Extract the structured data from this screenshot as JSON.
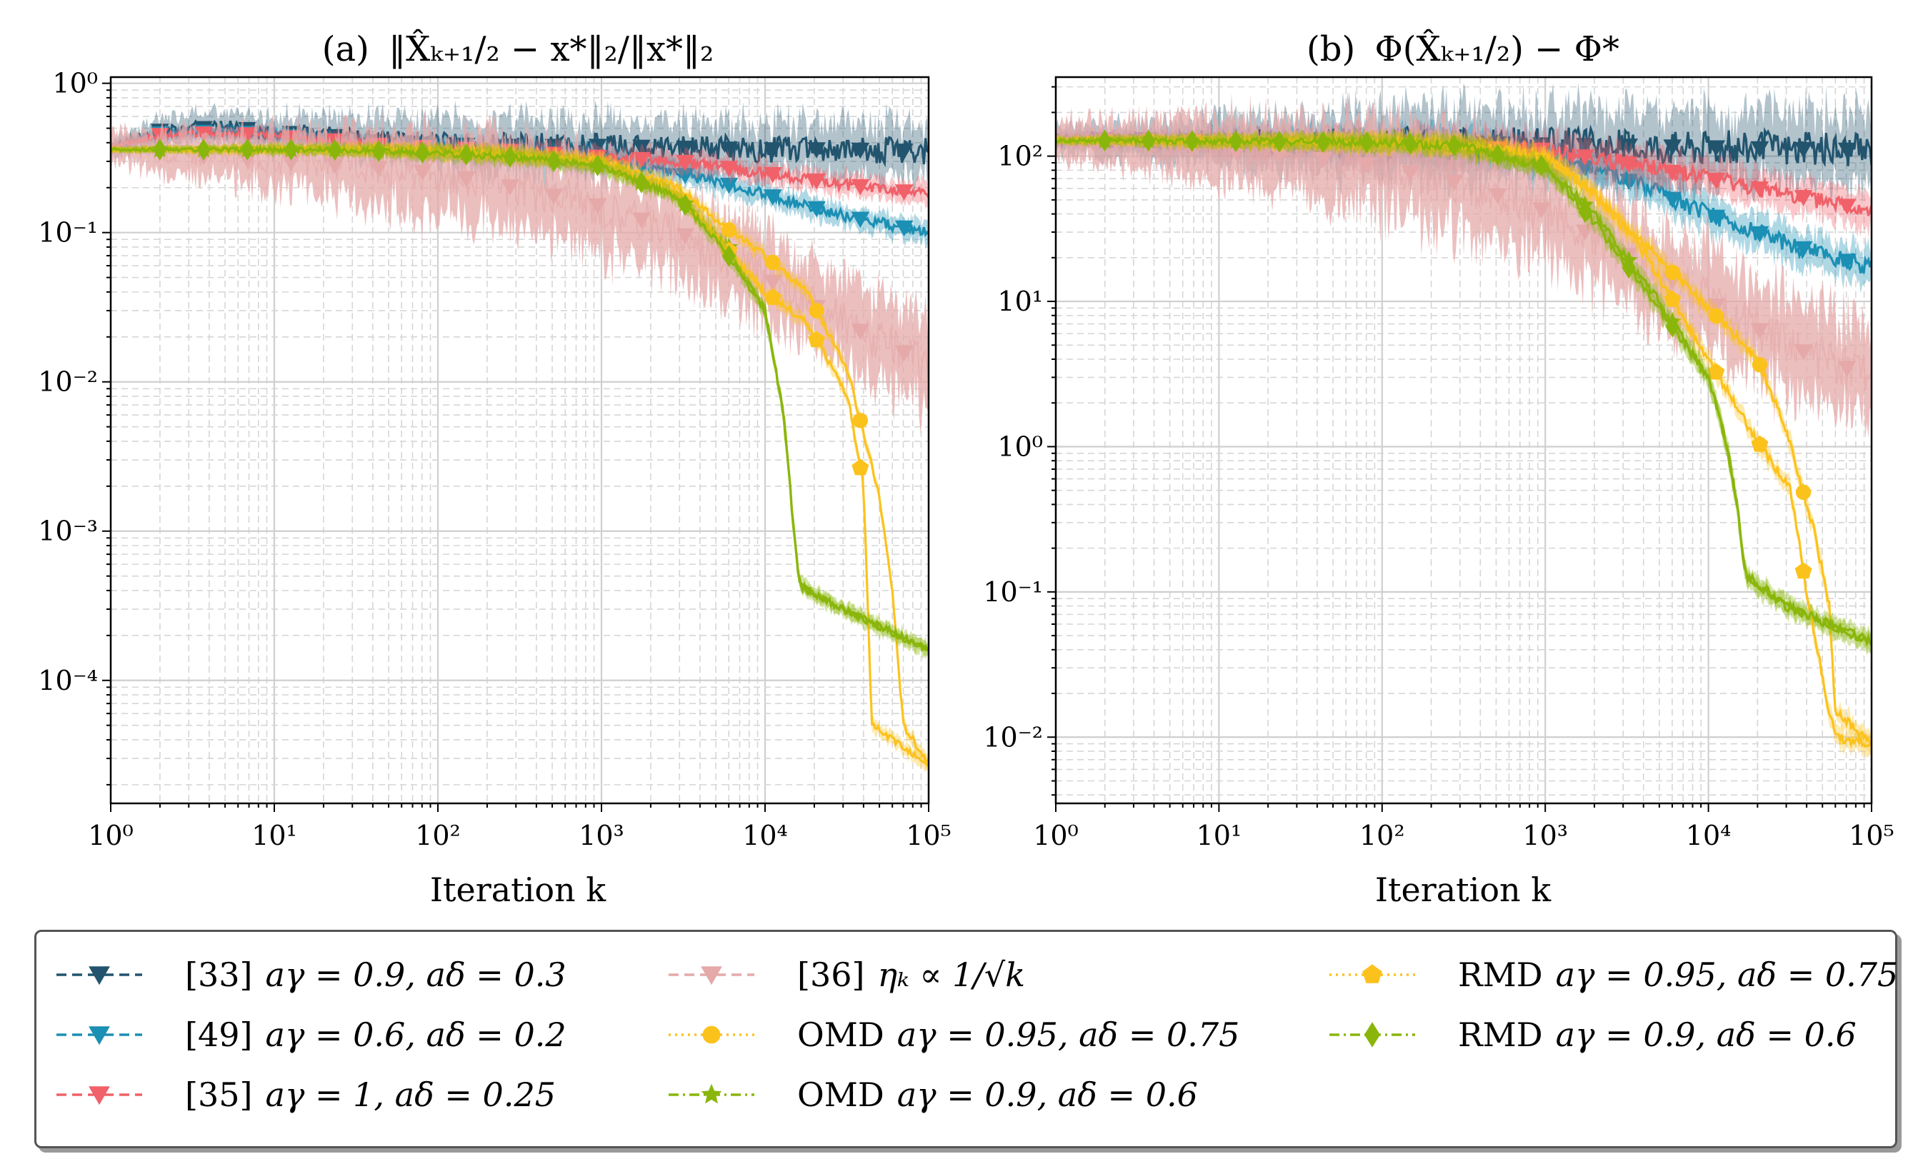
{
  "chart_data": [
    {
      "type": "line",
      "panel": "a",
      "title_prefix": "(a)",
      "title_math": "‖X̂ₖ₊₁/₂ − x*‖₂/‖x*‖₂",
      "xlabel": "Iteration k",
      "ylabel": "",
      "xscale": "log",
      "yscale": "log",
      "xlim": [
        1,
        100000
      ],
      "ylim": [
        1.5e-05,
        1.1
      ],
      "xticks": [
        1,
        10,
        100,
        1000,
        10000,
        100000
      ],
      "xtick_labels": [
        "10⁰",
        "10¹",
        "10²",
        "10³",
        "10⁴",
        "10⁵"
      ],
      "yticks": [
        1,
        0.1,
        0.01,
        0.001,
        0.0001
      ],
      "ytick_labels": [
        "10⁰",
        "10⁻¹",
        "10⁻²",
        "10⁻³",
        "10⁻⁴"
      ],
      "grid": true,
      "series": [
        {
          "key": "s33",
          "name": "[33] aγ = 0.9, aδ = 0.3",
          "color": "#22546e",
          "x": [
            1,
            2,
            3,
            6,
            10,
            20,
            50,
            100,
            300,
            1000,
            3000,
            10000,
            30000,
            100000
          ],
          "y": [
            0.37,
            0.48,
            0.5,
            0.5,
            0.47,
            0.45,
            0.4,
            0.39,
            0.38,
            0.38,
            0.37,
            0.36,
            0.36,
            0.35
          ],
          "noise": 0.22
        },
        {
          "key": "s49",
          "name": "[49] aγ = 0.6, aδ = 0.2",
          "color": "#1b8fb4",
          "x": [
            1,
            2,
            3,
            6,
            10,
            20,
            50,
            100,
            300,
            1000,
            2000,
            5000,
            10000,
            30000,
            100000
          ],
          "y": [
            0.37,
            0.46,
            0.47,
            0.47,
            0.45,
            0.42,
            0.38,
            0.37,
            0.35,
            0.32,
            0.27,
            0.22,
            0.18,
            0.13,
            0.1
          ],
          "noise": 0.09
        },
        {
          "key": "s35",
          "name": "[35] aγ = 1, aδ = 0.25",
          "color": "#f06169",
          "x": [
            1,
            2,
            3,
            6,
            10,
            20,
            50,
            100,
            300,
            1000,
            3000,
            10000,
            30000,
            100000
          ],
          "y": [
            0.37,
            0.45,
            0.46,
            0.46,
            0.44,
            0.42,
            0.38,
            0.37,
            0.35,
            0.32,
            0.3,
            0.25,
            0.21,
            0.18
          ],
          "noise": 0.09
        },
        {
          "key": "s36",
          "name": "[36] ηₖ ∝ 1/√k",
          "color": "#e5a9a9",
          "x": [
            1,
            3,
            10,
            30,
            100,
            300,
            1000,
            3000,
            10000,
            30000,
            100000
          ],
          "y": [
            0.37,
            0.33,
            0.3,
            0.28,
            0.25,
            0.2,
            0.15,
            0.1,
            0.05,
            0.025,
            0.013
          ],
          "noise": 0.35
        },
        {
          "key": "omd075",
          "name": "OMD aγ = 0.95, aδ = 0.75",
          "color": "#fcc21c",
          "x": [
            1,
            3,
            10,
            30,
            100,
            300,
            1000,
            3000,
            5600,
            10000,
            18000,
            32000,
            50000,
            60000,
            70000,
            100000
          ],
          "y": [
            0.36,
            0.36,
            0.36,
            0.36,
            0.35,
            0.33,
            0.3,
            0.2,
            0.11,
            0.07,
            0.04,
            0.012,
            0.0017,
            0.0004,
            5e-05,
            2.8e-05
          ],
          "noise": 0.06
        },
        {
          "key": "omd06",
          "name": "OMD aγ = 0.9, aδ = 0.6",
          "color": "#8ab60b",
          "x": [
            1,
            3,
            10,
            30,
            100,
            300,
            1000,
            3000,
            6000,
            10000,
            13000,
            15000,
            16000,
            17000,
            30000,
            100000
          ],
          "y": [
            0.36,
            0.36,
            0.36,
            0.36,
            0.35,
            0.33,
            0.28,
            0.17,
            0.08,
            0.03,
            0.006,
            0.001,
            0.0005,
            0.00042,
            0.0003,
            0.00016
          ],
          "noise": 0.06
        },
        {
          "key": "rmd075",
          "name": "RMD aγ = 0.95, aδ = 0.75",
          "color": "#fcc21c",
          "x": [
            1,
            3,
            10,
            30,
            100,
            300,
            1000,
            3000,
            10000,
            18000,
            32000,
            40000,
            45000,
            60000,
            100000
          ],
          "y": [
            0.36,
            0.36,
            0.36,
            0.36,
            0.35,
            0.33,
            0.3,
            0.18,
            0.04,
            0.025,
            0.008,
            0.002,
            5e-05,
            4e-05,
            2.7e-05
          ],
          "noise": 0.06
        },
        {
          "key": "rmd06",
          "name": "RMD aγ = 0.9, aδ = 0.6",
          "color": "#8ab60b",
          "x": [
            1,
            2,
            3,
            6,
            10,
            20,
            50,
            100,
            300,
            1000,
            3000,
            6000,
            10000,
            13000,
            15000,
            16000,
            17000,
            30000,
            100000
          ],
          "y": [
            0.36,
            0.36,
            0.36,
            0.36,
            0.36,
            0.36,
            0.35,
            0.34,
            0.32,
            0.28,
            0.17,
            0.07,
            0.03,
            0.006,
            0.001,
            0.0005,
            0.00042,
            0.0003,
            0.00016
          ],
          "noise": 0.06
        }
      ]
    },
    {
      "type": "line",
      "panel": "b",
      "title_prefix": "(b)",
      "title_math": "Φ(X̂ₖ₊₁/₂) − Φ*",
      "xlabel": "Iteration k",
      "ylabel": "",
      "xscale": "log",
      "yscale": "log",
      "xlim": [
        1,
        100000
      ],
      "ylim": [
        0.0035,
        350
      ],
      "xticks": [
        1,
        10,
        100,
        1000,
        10000,
        100000
      ],
      "xtick_labels": [
        "10⁰",
        "10¹",
        "10²",
        "10³",
        "10⁴",
        "10⁵"
      ],
      "yticks": [
        100,
        10,
        1,
        0.1,
        0.01
      ],
      "ytick_labels": [
        "10²",
        "10¹",
        "10⁰",
        "10⁻¹",
        "10⁻²"
      ],
      "grid": true,
      "series": [
        {
          "key": "s33",
          "name": "[33] aγ = 0.9, aδ = 0.3",
          "color": "#22546e",
          "x": [
            1,
            3,
            10,
            30,
            100,
            300,
            1000,
            3000,
            10000,
            30000,
            100000
          ],
          "y": [
            130,
            130,
            128,
            126,
            124,
            122,
            120,
            118,
            115,
            112,
            110
          ],
          "noise": 0.3
        },
        {
          "key": "s49",
          "name": "[49] aγ = 0.6, aδ = 0.2",
          "color": "#1b8fb4",
          "x": [
            1,
            3,
            10,
            30,
            100,
            300,
            1000,
            3000,
            10000,
            30000,
            100000
          ],
          "y": [
            130,
            128,
            126,
            124,
            120,
            115,
            100,
            70,
            40,
            25,
            17
          ],
          "noise": 0.15
        },
        {
          "key": "s35",
          "name": "[35] aγ = 1, aδ = 0.25",
          "color": "#f06169",
          "x": [
            1,
            3,
            10,
            30,
            100,
            300,
            1000,
            3000,
            10000,
            30000,
            100000
          ],
          "y": [
            130,
            128,
            126,
            124,
            120,
            115,
            110,
            90,
            70,
            55,
            42
          ],
          "noise": 0.15
        },
        {
          "key": "s36",
          "name": "[36] ηₖ ∝ 1/√k",
          "color": "#e5a9a9",
          "x": [
            1,
            3,
            10,
            30,
            100,
            300,
            1000,
            3000,
            10000,
            30000,
            100000
          ],
          "y": [
            130,
            120,
            110,
            100,
            85,
            65,
            42,
            22,
            10,
            5,
            3
          ],
          "noise": 0.4
        },
        {
          "key": "omd075",
          "name": "OMD aγ = 0.95, aδ = 0.75",
          "color": "#fcc21c",
          "x": [
            1,
            3,
            10,
            30,
            100,
            300,
            1000,
            2000,
            4000,
            10000,
            20000,
            30000,
            45000,
            55000,
            60000,
            100000
          ],
          "y": [
            128,
            128,
            127,
            126,
            124,
            120,
            100,
            55,
            25,
            9,
            4,
            1.3,
            0.25,
            0.08,
            0.015,
            0.009
          ],
          "noise": 0.08
        },
        {
          "key": "omd06",
          "name": "OMD aγ = 0.9, aδ = 0.6",
          "color": "#8ab60b",
          "x": [
            1,
            3,
            10,
            30,
            100,
            300,
            1000,
            2000,
            5000,
            10000,
            13000,
            15000,
            16000,
            17000,
            30000,
            100000
          ],
          "y": [
            128,
            128,
            127,
            126,
            124,
            118,
            85,
            40,
            10,
            3,
            1,
            0.4,
            0.2,
            0.13,
            0.08,
            0.045
          ],
          "noise": 0.08
        },
        {
          "key": "rmd075",
          "name": "RMD aγ = 0.95, aδ = 0.75",
          "color": "#fcc21c",
          "x": [
            1,
            3,
            10,
            30,
            100,
            300,
            1000,
            2000,
            4000,
            10000,
            18000,
            32000,
            40000,
            55000,
            60000,
            100000
          ],
          "y": [
            128,
            128,
            127,
            126,
            124,
            120,
            100,
            55,
            22,
            4,
            1.3,
            0.5,
            0.1,
            0.015,
            0.01,
            0.009
          ],
          "noise": 0.08
        },
        {
          "key": "rmd06",
          "name": "RMD aγ = 0.9, aδ = 0.6",
          "color": "#8ab60b",
          "x": [
            1,
            2,
            3,
            6,
            10,
            20,
            50,
            100,
            300,
            1000,
            2000,
            5000,
            10000,
            13000,
            15000,
            16000,
            17000,
            30000,
            100000
          ],
          "y": [
            128,
            128,
            128,
            127,
            127,
            126,
            125,
            124,
            118,
            85,
            35,
            9,
            3,
            1,
            0.4,
            0.2,
            0.13,
            0.08,
            0.045
          ],
          "noise": 0.08
        }
      ]
    }
  ],
  "legend": {
    "entries": [
      {
        "key": "s33",
        "ref": "[33]",
        "math": "aγ = 0.9, aδ = 0.3",
        "color": "#22546e",
        "marker": "triangle-down",
        "dash": "dashed"
      },
      {
        "key": "s49",
        "ref": "[49]",
        "math": "aγ = 0.6, aδ = 0.2",
        "color": "#1b8fb4",
        "marker": "triangle-down",
        "dash": "dashed"
      },
      {
        "key": "s35",
        "ref": "[35]",
        "math": "aγ = 1, aδ = 0.25",
        "color": "#f06169",
        "marker": "triangle-down",
        "dash": "dashed"
      },
      {
        "key": "s36",
        "ref": "[36]",
        "math": "ηₖ ∝ 1/√k",
        "color": "#e5a9a9",
        "marker": "triangle-down",
        "dash": "dashed"
      },
      {
        "key": "omd075",
        "ref": "OMD",
        "math": "aγ = 0.95, aδ = 0.75",
        "color": "#fcc21c",
        "marker": "circle",
        "dash": "dotted"
      },
      {
        "key": "omd06",
        "ref": "OMD",
        "math": "aγ = 0.9, aδ = 0.6",
        "color": "#8ab60b",
        "marker": "star",
        "dash": "dashdot"
      },
      {
        "key": "rmd075",
        "ref": "RMD",
        "math": "aγ = 0.95, aδ = 0.75",
        "color": "#fcc21c",
        "marker": "pentagon",
        "dash": "dotted"
      },
      {
        "key": "rmd06",
        "ref": "RMD",
        "math": "aγ = 0.9, aδ = 0.6",
        "color": "#8ab60b",
        "marker": "diamond",
        "dash": "dashdot"
      }
    ]
  }
}
